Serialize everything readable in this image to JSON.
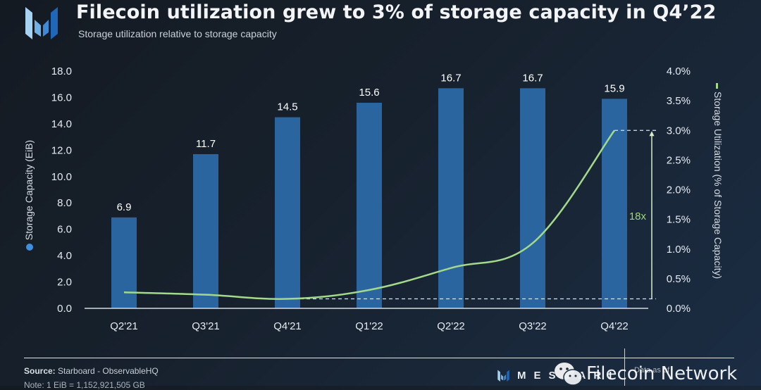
{
  "header": {
    "title": "Filecoin utilization grew to 3% of storage capacity in Q4’22",
    "subtitle": "Storage utilization relative to storage capacity"
  },
  "colors": {
    "bar": "#2b659f",
    "line": "#a3d98a",
    "legend_dot": "#3f8fe0",
    "annotation": "#9fd67f"
  },
  "chart_data": {
    "type": "bar",
    "title": "Filecoin utilization grew to 3% of storage capacity in Q4’22",
    "subtitle": "Storage utilization relative to storage capacity",
    "categories": [
      "Q2'21",
      "Q3'21",
      "Q4'21",
      "Q1'22",
      "Q2'22",
      "Q3'22",
      "Q4'22"
    ],
    "series": [
      {
        "name": "Storage Capacity (EiB)",
        "type": "bar",
        "axis": "left",
        "values": [
          6.9,
          11.7,
          14.5,
          15.6,
          16.7,
          16.7,
          15.9
        ],
        "data_labels": [
          "6.9",
          "11.7",
          "14.5",
          "15.6",
          "16.7",
          "16.7",
          "15.9"
        ]
      },
      {
        "name": "Storage Utilization (% of Storage Capacity)",
        "type": "line",
        "axis": "right",
        "values": [
          0.27,
          0.23,
          0.16,
          0.31,
          0.68,
          1.1,
          3.0
        ]
      }
    ],
    "left_axis": {
      "label": "Storage Capacity (EiB)",
      "ylim": [
        0,
        18
      ],
      "ticks": [
        "0.0",
        "2.0",
        "4.0",
        "6.0",
        "8.0",
        "10.0",
        "12.0",
        "14.0",
        "16.0",
        "18.0"
      ]
    },
    "right_axis": {
      "label": "Storage Utilization (% of Storage Capacity)",
      "ylim": [
        0,
        4
      ],
      "ticks": [
        "0.0%",
        "0.5%",
        "1.0%",
        "1.5%",
        "2.0%",
        "2.5%",
        "3.0%",
        "3.5%",
        "4.0%"
      ]
    },
    "annotations": [
      {
        "text": "18x",
        "from_value": 0.16,
        "to_value": 3.0,
        "axis": "right",
        "style": "arrow with dashed reference lines"
      }
    ],
    "grid": false,
    "legend": "axis-titles"
  },
  "footer": {
    "source_label": "Source:",
    "source_text": "Starboard - ObservableHQ",
    "note": "Note: 1 EiB = 1,152,921,505 GB",
    "brand": "MESSARI",
    "data_as_of_label": "Data as of",
    "data_as_of_date": "December 31, 2022",
    "watermark": "Filecoin Network"
  }
}
